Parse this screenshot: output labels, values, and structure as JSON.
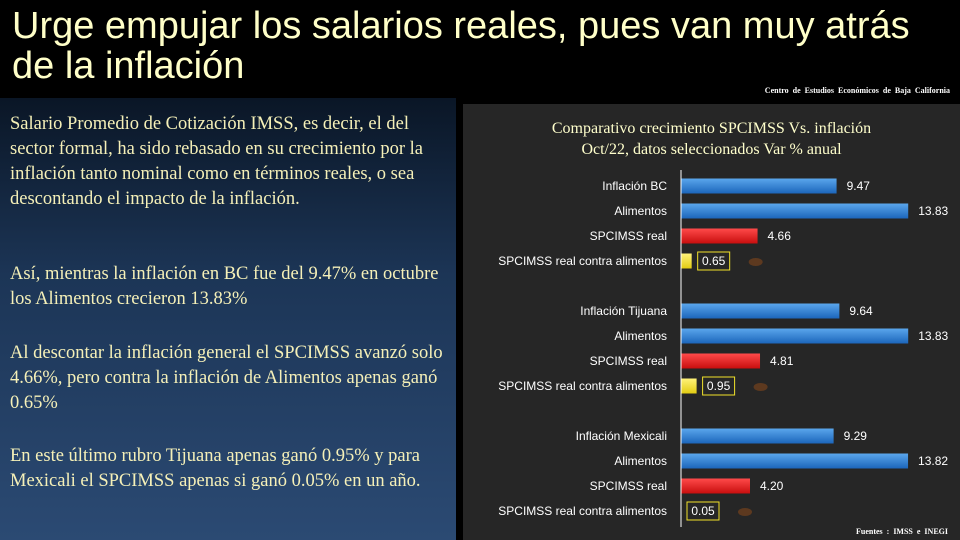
{
  "title": "Urge empujar los salarios reales, pues van muy atrás de la inflación",
  "org": "Centro de Estudios  Económicos  de  Baja California",
  "paragraphs": [
    "Salario Promedio de Cotización IMSS, es decir, el del sector formal, ha sido rebasado en su crecimiento  por la inflación tanto nominal como en términos reales, o sea descontando el impacto de la inflación.",
    "Así, mientras la inflación en BC fue del 9.47% en octubre los Alimentos  crecieron 13.83%",
    "Al descontar la inflación general el SPCIMSS avanzó solo 4.66%, pero contra la inflación de Alimentos apenas ganó 0.65%",
    "En este último rubro Tijuana apenas ganó 0.95% y para Mexicali el SPCIMSS apenas si ganó 0.05% en un año."
  ],
  "sources": "Fuentes :  IMSS e  INEGI",
  "colors": {
    "blue": "#2a7fd4",
    "red": "#e11818",
    "yellow": "#f2e22a",
    "title_text": "#ffffc8"
  },
  "chart_data": {
    "type": "bar",
    "orientation": "horizontal",
    "title": "Comparativo crecimiento SPCIMSS Vs. inflación Oct/22, datos seleccionados Var % anual",
    "title_lines": [
      "Comparativo crecimiento SPCIMSS Vs. inflación",
      "Oct/22, datos seleccionados Var % anual"
    ],
    "groups": [
      {
        "bars": [
          {
            "label": "Inflación BC",
            "value": 9.47,
            "display": "9.47",
            "color": "blue"
          },
          {
            "label": "Alimentos",
            "value": 13.83,
            "display": "13.83",
            "color": "blue"
          },
          {
            "label": "SPCIMSS real",
            "value": 4.66,
            "display": "4.66",
            "color": "red"
          },
          {
            "label": "SPCIMSS real  contra alimentos",
            "value": 0.65,
            "display": "0.65",
            "color": "yellow",
            "boxed": true
          }
        ]
      },
      {
        "bars": [
          {
            "label": "Inflación Tijuana",
            "value": 9.64,
            "display": "9.64",
            "color": "blue"
          },
          {
            "label": "Alimentos",
            "value": 13.83,
            "display": "13.83",
            "color": "blue"
          },
          {
            "label": "SPCIMSS real",
            "value": 4.81,
            "display": "4.81",
            "color": "red"
          },
          {
            "label": "SPCIMSS real  contra alimentos",
            "value": 0.95,
            "display": "0.95",
            "color": "yellow",
            "boxed": true
          }
        ]
      },
      {
        "bars": [
          {
            "label": "Inflación Mexicali",
            "value": 9.29,
            "display": "9.29",
            "color": "blue"
          },
          {
            "label": "Alimentos",
            "value": 13.82,
            "display": "13.82",
            "color": "blue"
          },
          {
            "label": "SPCIMSS real",
            "value": 4.2,
            "display": "4.20",
            "color": "red"
          },
          {
            "label": "SPCIMSS real  contra alimentos",
            "value": 0.05,
            "display": "0.05",
            "color": "yellow",
            "boxed": true
          }
        ]
      }
    ],
    "xlim": [
      0,
      14
    ]
  }
}
